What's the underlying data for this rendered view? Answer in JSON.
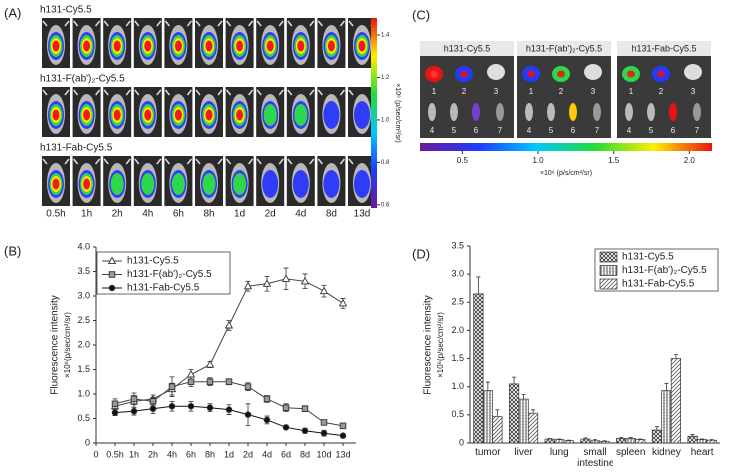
{
  "panel_a": {
    "label": "(A)",
    "rows": [
      "h131-Cy5.5",
      "h131-F(ab')₂-Cy5.5",
      "h131-Fab-Cy5.5"
    ],
    "timepoints": [
      "0.5h",
      "1h",
      "2h",
      "4h",
      "6h",
      "8h",
      "1d",
      "2d",
      "4d",
      "8d",
      "13d"
    ],
    "colorbar": {
      "label": "×10⁶ (p/sec/cm²/sr)",
      "lim": [
        0.585,
        1.48
      ],
      "ticks": [
        0.6,
        0.8,
        {
          "value": 1,
          "label": "1.0"
        },
        1.2,
        1.4
      ]
    }
  },
  "panel_c": {
    "label": "(C)",
    "groups": [
      "h131-Cy5.5",
      "h131-F(ab')₂-Cy5.5",
      "h131-Fab-Cy5.5"
    ],
    "organs": [
      "1",
      "2",
      "3",
      "4",
      "5",
      "6",
      "7"
    ],
    "colorbar": {
      "label": "×10⁶ (p/s/cm²/sr)",
      "lim": [
        0.22,
        2.15
      ],
      "ticks": [
        0.5,
        {
          "value": 1,
          "label": "1.0"
        },
        1.5,
        {
          "value": 2,
          "label": "2.0"
        }
      ]
    }
  },
  "chart_data": [
    {
      "type": "line",
      "panel_label": "(B)",
      "y_label": "Fluorescence intensity",
      "y_unit_label": "×10⁶(p/sec/cm²/sr)",
      "categories": [
        "0",
        "0.5h",
        "1h",
        "2h",
        "4h",
        "6h",
        "8h",
        "1d",
        "2d",
        "4d",
        "6d",
        "8d",
        "10d",
        "13d"
      ],
      "ylim": [
        0,
        4
      ],
      "yticks": [
        0,
        0.5,
        {
          "value": 1,
          "label": "1.0"
        },
        1.5,
        {
          "value": 2,
          "label": "2.0"
        },
        2.5,
        {
          "value": 3,
          "label": "3.0"
        },
        3.5,
        {
          "value": 4,
          "label": "4.0"
        }
      ],
      "legend": "upper left",
      "series": [
        {
          "name": "h131-Cy5.5",
          "color": "#444",
          "marker": "triangle",
          "marker_fill": "#fff",
          "values": [
            null,
            0.75,
            0.85,
            0.9,
            1.1,
            1.4,
            1.6,
            2.4,
            3.2,
            3.25,
            3.35,
            3.3,
            3.1,
            2.85
          ],
          "errors": [
            null,
            0.1,
            0.12,
            0.08,
            0.12,
            0.1,
            0.06,
            0.1,
            0.1,
            0.15,
            0.22,
            0.15,
            0.12,
            0.1
          ]
        },
        {
          "name": "h131-F(ab')₂-Cy5.5",
          "color": "#444",
          "marker": "square",
          "marker_fill": "#999",
          "values": [
            null,
            0.8,
            0.9,
            0.85,
            1.15,
            1.25,
            1.25,
            1.25,
            1.15,
            0.9,
            0.72,
            0.7,
            0.42,
            0.35
          ],
          "errors": [
            null,
            0.1,
            0.12,
            0.08,
            0.2,
            0.1,
            0.08,
            0.06,
            0.08,
            0.07,
            0.08,
            0.06,
            0.03,
            0.03
          ]
        },
        {
          "name": "h131-Fab-Cy5.5",
          "color": "#111",
          "marker": "circle",
          "marker_fill": "#111",
          "values": [
            null,
            0.62,
            0.65,
            0.7,
            0.75,
            0.75,
            0.72,
            0.68,
            0.58,
            0.47,
            0.32,
            0.25,
            0.2,
            0.15
          ],
          "errors": [
            null,
            0.06,
            0.08,
            0.1,
            0.1,
            0.1,
            0.08,
            0.1,
            0.22,
            0.08,
            0.03,
            0.05,
            0.06,
            0.03
          ]
        }
      ]
    },
    {
      "type": "bar",
      "panel_label": "(D)",
      "y_label": "Fluorescence intensity",
      "y_unit_label": "×10⁶(p/sec/cm²/sr)",
      "categories": [
        "tumor",
        "liver",
        "lung",
        "small intestine",
        "spleen",
        "kidney",
        "heart"
      ],
      "ylim": [
        0,
        3.5
      ],
      "yticks": [
        0,
        0.5,
        {
          "value": 1,
          "label": "1.0"
        },
        1.5,
        {
          "value": 2,
          "label": "2.0"
        },
        2.5,
        {
          "value": 3,
          "label": "3.0"
        },
        3.5
      ],
      "legend": "upper right",
      "series": [
        {
          "name": "h131-Cy5.5",
          "color": "#333",
          "pattern": "crosshatch",
          "values": [
            2.65,
            1.05,
            0.07,
            0.07,
            0.08,
            0.23,
            0.12
          ],
          "errors": [
            0.3,
            0.12,
            0.01,
            0.02,
            0.02,
            0.06,
            0.03
          ]
        },
        {
          "name": "h131-F(ab')₂-Cy5.5",
          "color": "#333",
          "pattern": "vertical",
          "values": [
            0.93,
            0.78,
            0.06,
            0.04,
            0.08,
            0.93,
            0.06
          ],
          "errors": [
            0.15,
            0.08,
            0.01,
            0.02,
            0.02,
            0.13,
            0.01
          ]
        },
        {
          "name": "h131-Fab-Cy5.5",
          "color": "#333",
          "pattern": "diagonal",
          "values": [
            0.47,
            0.53,
            0.04,
            0.03,
            0.06,
            1.5,
            0.05
          ],
          "errors": [
            0.12,
            0.06,
            0.01,
            0.01,
            0.01,
            0.07,
            0.01
          ]
        }
      ]
    }
  ]
}
